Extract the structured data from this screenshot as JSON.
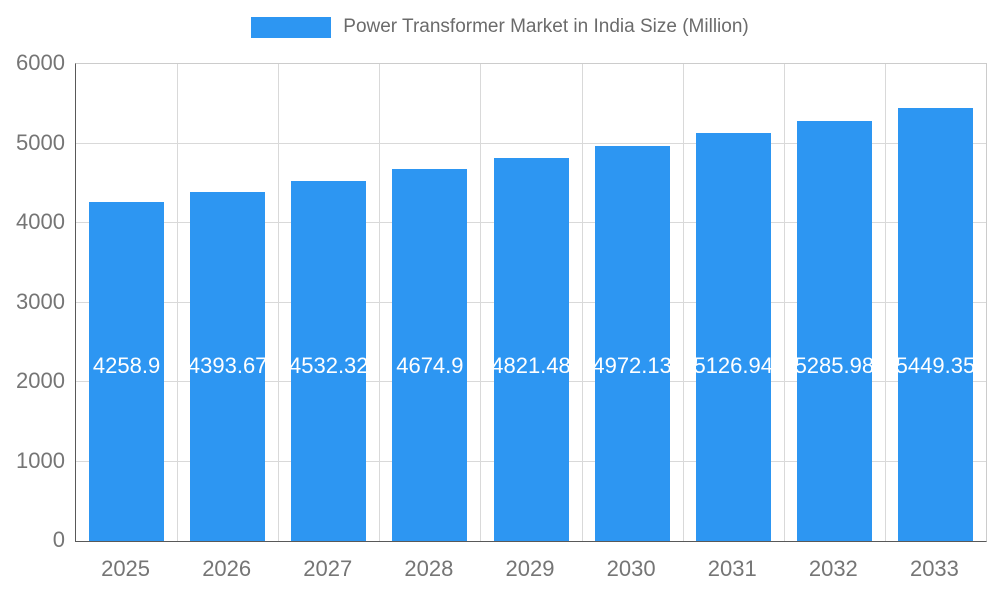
{
  "legend": {
    "label": "Power Transformer Market in India Size (Million)",
    "swatch_color": "#2d96f2"
  },
  "chart_data": {
    "type": "bar",
    "title": "Power Transformer Market in India Size (Million)",
    "categories": [
      "2025",
      "2026",
      "2027",
      "2028",
      "2029",
      "2030",
      "2031",
      "2032",
      "2033"
    ],
    "values": [
      4258.9,
      4393.67,
      4532.32,
      4674.9,
      4821.48,
      4972.13,
      5126.94,
      5285.98,
      5449.35
    ],
    "value_labels": [
      "4258.9",
      "4393.67",
      "4532.32",
      "4674.9",
      "4821.48",
      "4972.13",
      "5126.94",
      "5285.98",
      "5449.35"
    ],
    "ylim": [
      0,
      6000
    ],
    "yticks": [
      0,
      1000,
      2000,
      3000,
      4000,
      5000,
      6000
    ],
    "bar_color": "#2d96f2",
    "value_label_color": "#ffffff",
    "grid": true,
    "legend_position": "top"
  }
}
